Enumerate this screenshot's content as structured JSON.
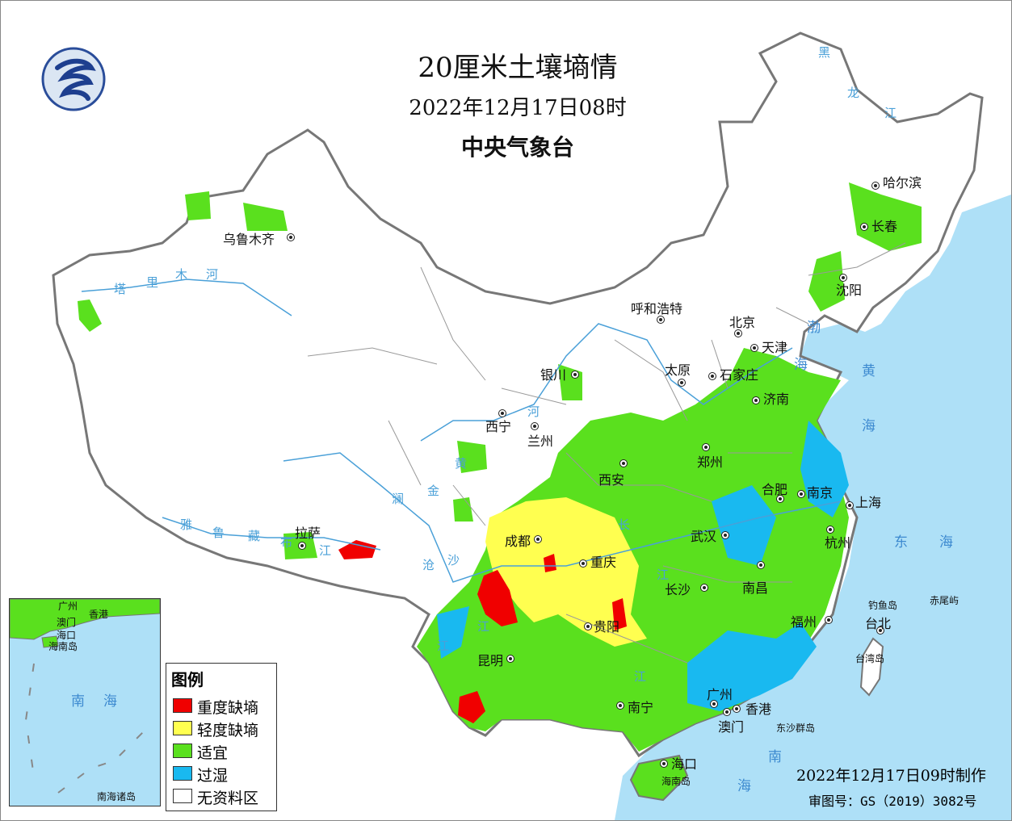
{
  "header": {
    "title": "20厘米土壤墒情",
    "datetime": "2022年12月17日08时",
    "issuer": "中央气象台"
  },
  "legend": {
    "title": "图例",
    "items": [
      {
        "label": "重度缺墒",
        "color": "#f00000"
      },
      {
        "label": "轻度缺墒",
        "color": "#ffff50"
      },
      {
        "label": "适宜",
        "color": "#5ae01e"
      },
      {
        "label": "过湿",
        "color": "#19b9f0"
      },
      {
        "label": "无资料区",
        "color": "#ffffff"
      }
    ]
  },
  "cities": [
    {
      "name": "哈尔滨"
    },
    {
      "name": "长春"
    },
    {
      "name": "沈阳"
    },
    {
      "name": "呼和浩特"
    },
    {
      "name": "北京"
    },
    {
      "name": "天津"
    },
    {
      "name": "乌鲁木齐"
    },
    {
      "name": "银川"
    },
    {
      "name": "太原"
    },
    {
      "name": "石家庄"
    },
    {
      "name": "济南"
    },
    {
      "name": "西宁"
    },
    {
      "name": "兰州"
    },
    {
      "name": "郑州"
    },
    {
      "name": "西安"
    },
    {
      "name": "合肥"
    },
    {
      "name": "南京"
    },
    {
      "name": "上海"
    },
    {
      "name": "拉萨"
    },
    {
      "name": "成都"
    },
    {
      "name": "武汉"
    },
    {
      "name": "杭州"
    },
    {
      "name": "重庆"
    },
    {
      "name": "长沙"
    },
    {
      "name": "南昌"
    },
    {
      "name": "福州"
    },
    {
      "name": "台北"
    },
    {
      "name": "贵阳"
    },
    {
      "name": "昆明"
    },
    {
      "name": "广州"
    },
    {
      "name": "香港"
    },
    {
      "name": "澳门"
    },
    {
      "name": "南宁"
    },
    {
      "name": "海口"
    }
  ],
  "islands": [
    "钓鱼岛",
    "赤尾屿",
    "台湾岛",
    "东沙群岛",
    "海南岛"
  ],
  "rivers": [
    "黑",
    "龙",
    "江",
    "塔",
    "里",
    "木",
    "河",
    "雅",
    "鲁",
    "藏",
    "布",
    "江",
    "澜",
    "沧",
    "江",
    "金",
    "沙",
    "江",
    "黄",
    "河",
    "长",
    "江",
    "江"
  ],
  "seas": [
    "渤",
    "海",
    "黄",
    "海",
    "东",
    "海",
    "南",
    "海"
  ],
  "inset": {
    "label": "南海诸岛",
    "places": [
      "广州",
      "香港",
      "澳门",
      "海口",
      "海南岛"
    ],
    "sea": [
      "南",
      "海"
    ]
  },
  "footer": {
    "made": "2022年12月17日09时制作",
    "approval": "审图号：GS（2019）3082号"
  }
}
